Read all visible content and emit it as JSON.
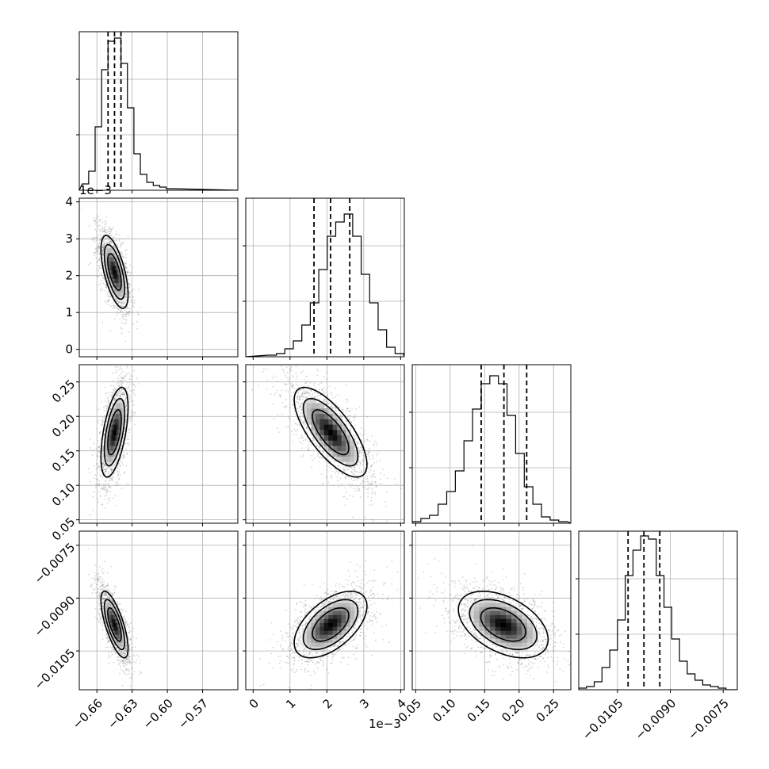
{
  "chart_data": {
    "type": "corner",
    "grid": true,
    "parameters": [
      {
        "range": [
          -0.675,
          -0.54
        ],
        "ticks": [
          -0.66,
          -0.63,
          -0.6,
          -0.57
        ],
        "tick_labels": [
          "−0.66",
          "−0.63",
          "−0.60",
          "−0.57"
        ],
        "offset": "",
        "mean": -0.645,
        "sigma": 0.0055,
        "quantiles": [
          -0.6505,
          -0.645,
          -0.6395
        ],
        "hist_edges_from": -0.6725,
        "hist_bin": 0.0055,
        "hist_values": [
          0.04,
          0.12,
          0.4,
          0.76,
          0.94,
          0.96,
          0.8,
          0.52,
          0.23,
          0.1,
          0.05,
          0.03,
          0.02,
          0.01
        ]
      },
      {
        "range": [
          -0.0002,
          0.0041
        ],
        "ticks": [
          0,
          0.001,
          0.002,
          0.003,
          0.004
        ],
        "tick_labels": [
          "0",
          "1",
          "2",
          "3",
          "4"
        ],
        "offset": "1e−3",
        "mean": 0.0021,
        "sigma": 0.00047,
        "quantiles": [
          0.00165,
          0.0021,
          0.00262
        ],
        "hist_edges_from": 0.0004,
        "hist_bin": 0.00023,
        "hist_values": [
          0.01,
          0.02,
          0.05,
          0.1,
          0.2,
          0.34,
          0.55,
          0.76,
          0.85,
          0.9,
          0.76,
          0.52,
          0.34,
          0.17,
          0.06,
          0.02,
          0.01
        ]
      },
      {
        "range": [
          0.045,
          0.275
        ],
        "ticks": [
          0.05,
          0.1,
          0.15,
          0.2,
          0.25
        ],
        "tick_labels": [
          "0.05",
          "0.10",
          "0.15",
          "0.20",
          "0.25"
        ],
        "offset": "",
        "mean": 0.177,
        "sigma": 0.031,
        "quantiles": [
          0.145,
          0.178,
          0.211
        ],
        "hist_edges_from": 0.045,
        "hist_bin": 0.0125,
        "hist_values": [
          0.01,
          0.03,
          0.05,
          0.12,
          0.2,
          0.33,
          0.52,
          0.72,
          0.88,
          0.93,
          0.88,
          0.68,
          0.44,
          0.23,
          0.12,
          0.04,
          0.02,
          0.01
        ]
      },
      {
        "range": [
          -0.0116,
          -0.0071
        ],
        "ticks": [
          -0.0105,
          -0.009,
          -0.0075
        ],
        "tick_labels": [
          "−0.0105",
          "−0.0090",
          "−0.0075"
        ],
        "offset": "",
        "mean": -0.00975,
        "sigma": 0.00045,
        "quantiles": [
          -0.0102,
          -0.00975,
          -0.0093
        ],
        "hist_edges_from": -0.0116,
        "hist_bin": 0.00022,
        "hist_values": [
          0.01,
          0.02,
          0.05,
          0.14,
          0.25,
          0.44,
          0.72,
          0.88,
          0.97,
          0.95,
          0.72,
          0.52,
          0.32,
          0.18,
          0.1,
          0.06,
          0.03,
          0.02,
          0.01,
          0.0
        ]
      }
    ],
    "correlations": {
      "1,0": -0.62,
      "2,0": 0.55,
      "2,1": -0.72,
      "3,0": -0.72,
      "3,1": 0.55,
      "3,2": -0.45
    },
    "contour_levels_sigma": [
      1,
      1.5,
      2
    ]
  }
}
